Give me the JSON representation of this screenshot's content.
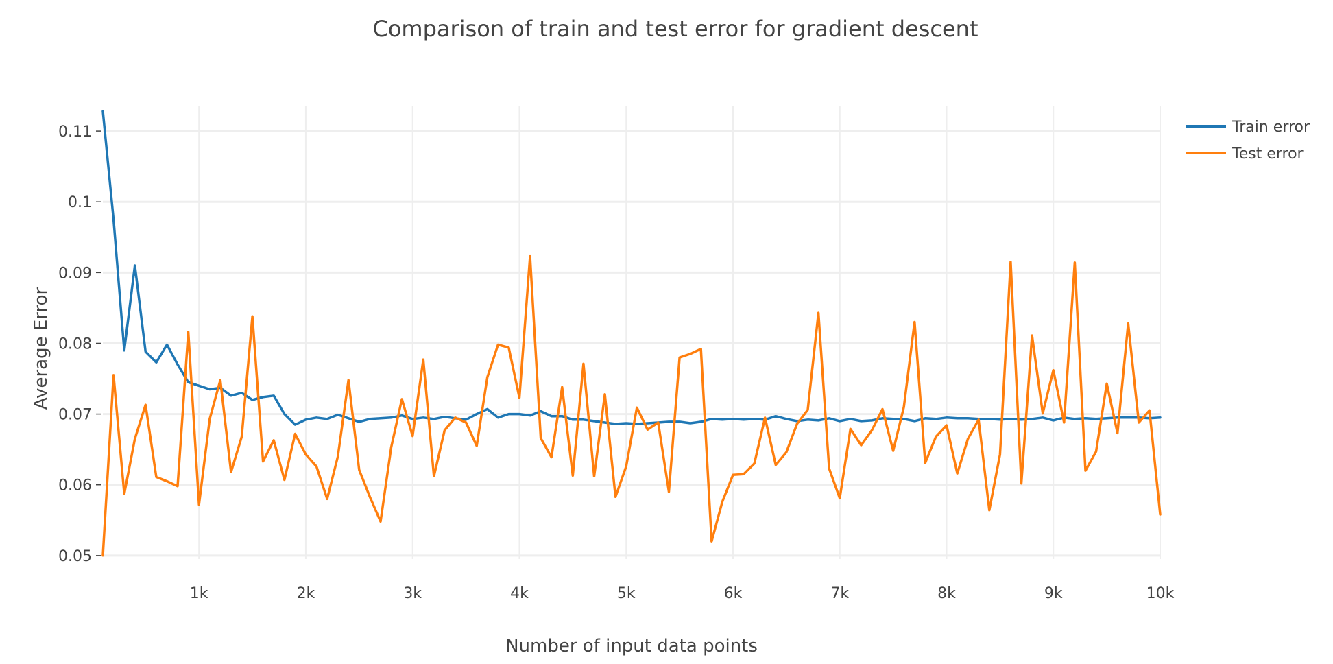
{
  "chart_data": {
    "type": "line",
    "title": "Comparison of train and test error for gradient descent",
    "xlabel": "Number of input data points",
    "ylabel": "Average Error",
    "xlim": [
      100,
      10000
    ],
    "ylim": [
      0.0495,
      0.1135
    ],
    "x_ticks": [
      1000,
      2000,
      3000,
      4000,
      5000,
      6000,
      7000,
      8000,
      9000,
      10000
    ],
    "x_tick_labels": [
      "1k",
      "2k",
      "3k",
      "4k",
      "5k",
      "6k",
      "7k",
      "8k",
      "9k",
      "10k"
    ],
    "y_ticks": [
      0.05,
      0.06,
      0.07,
      0.08,
      0.09,
      0.1,
      0.11
    ],
    "y_tick_labels": [
      "0.05",
      "0.06",
      "0.07",
      "0.08",
      "0.09",
      "0.1",
      "0.11"
    ],
    "grid": true,
    "legend_position": "top-right",
    "x": [
      100,
      200,
      300,
      400,
      500,
      600,
      700,
      800,
      900,
      1000,
      1100,
      1200,
      1300,
      1400,
      1500,
      1600,
      1700,
      1800,
      1900,
      2000,
      2100,
      2200,
      2300,
      2400,
      2500,
      2600,
      2700,
      2800,
      2900,
      3000,
      3100,
      3200,
      3300,
      3400,
      3500,
      3600,
      3700,
      3800,
      3900,
      4000,
      4100,
      4200,
      4300,
      4400,
      4500,
      4600,
      4700,
      4800,
      4900,
      5000,
      5100,
      5200,
      5300,
      5400,
      5500,
      5600,
      5700,
      5800,
      5900,
      6000,
      6100,
      6200,
      6300,
      6400,
      6500,
      6600,
      6700,
      6800,
      6900,
      7000,
      7100,
      7200,
      7300,
      7400,
      7500,
      7600,
      7700,
      7800,
      7900,
      8000,
      8100,
      8200,
      8300,
      8400,
      8500,
      8600,
      8700,
      8800,
      8900,
      9000,
      9100,
      9200,
      9300,
      9400,
      9500,
      9600,
      9700,
      9800,
      9900,
      10000
    ],
    "series": [
      {
        "name": "Train error",
        "color": "#1f77b4",
        "values": [
          0.1128,
          0.0975,
          0.079,
          0.091,
          0.0788,
          0.0773,
          0.0798,
          0.077,
          0.0745,
          0.074,
          0.0735,
          0.0737,
          0.0726,
          0.073,
          0.072,
          0.0724,
          0.0726,
          0.07,
          0.0685,
          0.0692,
          0.0695,
          0.0693,
          0.0699,
          0.0694,
          0.0689,
          0.0693,
          0.0694,
          0.0695,
          0.0698,
          0.0693,
          0.0695,
          0.0693,
          0.0696,
          0.0694,
          0.0692,
          0.07,
          0.0707,
          0.0695,
          0.07,
          0.07,
          0.0698,
          0.0704,
          0.0697,
          0.0697,
          0.0692,
          0.0692,
          0.069,
          0.0688,
          0.0686,
          0.0687,
          0.0686,
          0.0687,
          0.0688,
          0.0689,
          0.0689,
          0.0687,
          0.0689,
          0.0693,
          0.0692,
          0.0693,
          0.0692,
          0.0693,
          0.0692,
          0.0697,
          0.0693,
          0.069,
          0.0692,
          0.0691,
          0.0694,
          0.069,
          0.0693,
          0.069,
          0.0691,
          0.0694,
          0.0693,
          0.0693,
          0.069,
          0.0694,
          0.0693,
          0.0695,
          0.0694,
          0.0694,
          0.0693,
          0.0693,
          0.0692,
          0.0693,
          0.0692,
          0.0693,
          0.0695,
          0.0691,
          0.0695,
          0.0693,
          0.0694,
          0.0693,
          0.0694,
          0.0695,
          0.0695,
          0.0695,
          0.0694,
          0.0695
        ]
      },
      {
        "name": "Test error",
        "color": "#ff7f0e",
        "values": [
          0.05,
          0.0755,
          0.0587,
          0.0665,
          0.0713,
          0.0611,
          0.0605,
          0.0598,
          0.0816,
          0.0572,
          0.0693,
          0.0748,
          0.0618,
          0.0668,
          0.0838,
          0.0633,
          0.0663,
          0.0607,
          0.0672,
          0.0643,
          0.0626,
          0.058,
          0.064,
          0.0748,
          0.0621,
          0.0583,
          0.0548,
          0.0653,
          0.0721,
          0.0669,
          0.0777,
          0.0612,
          0.0677,
          0.0695,
          0.0688,
          0.0655,
          0.0752,
          0.0798,
          0.0794,
          0.0723,
          0.0923,
          0.0666,
          0.0639,
          0.0738,
          0.0613,
          0.0771,
          0.0612,
          0.0728,
          0.0583,
          0.0626,
          0.0709,
          0.0678,
          0.0688,
          0.059,
          0.078,
          0.0785,
          0.0792,
          0.052,
          0.0576,
          0.0614,
          0.0615,
          0.063,
          0.0695,
          0.0628,
          0.0646,
          0.0686,
          0.0706,
          0.0843,
          0.0623,
          0.0581,
          0.0679,
          0.0656,
          0.0677,
          0.0707,
          0.0648,
          0.071,
          0.083,
          0.0631,
          0.0668,
          0.0684,
          0.0616,
          0.0665,
          0.0692,
          0.0564,
          0.0643,
          0.0915,
          0.0602,
          0.0811,
          0.0701,
          0.0762,
          0.0688,
          0.0914,
          0.062,
          0.0647,
          0.0743,
          0.0673,
          0.0828,
          0.0688,
          0.0705,
          0.0558
        ]
      }
    ]
  }
}
